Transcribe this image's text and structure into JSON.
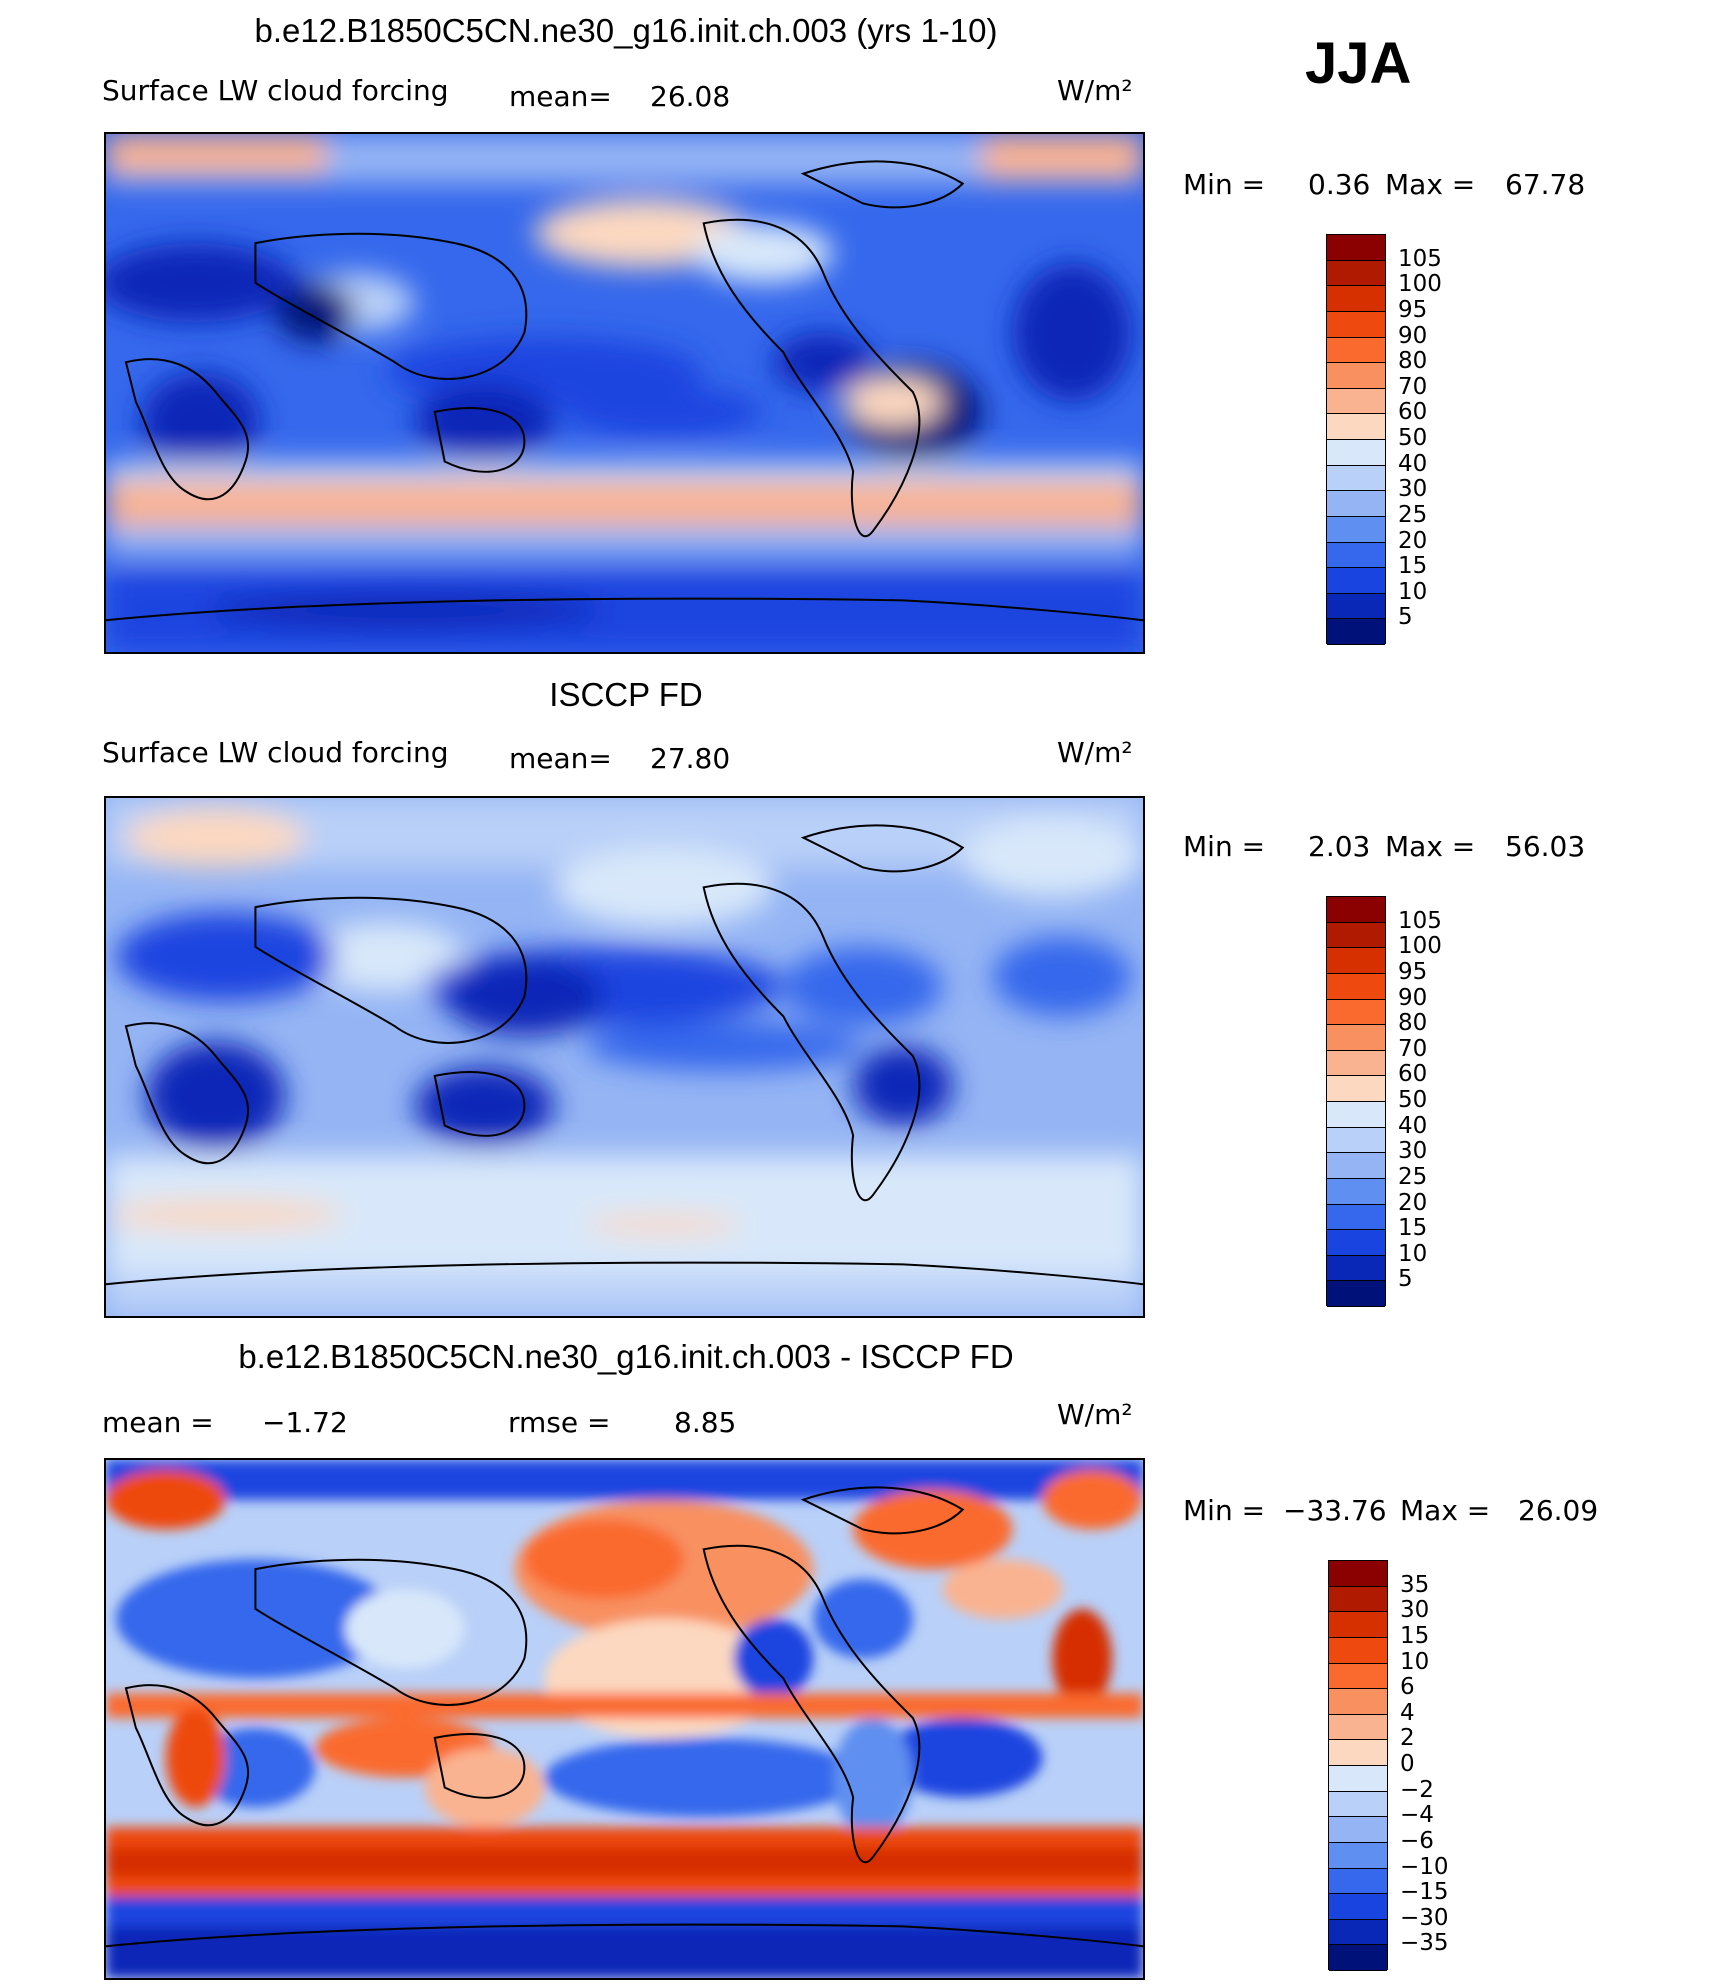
{
  "chart_data": [
    {
      "type": "heatmap",
      "title": "b.e12.B1850C5CN.ne30_g16.init.ch.003 (yrs 1-10)",
      "left_label": "Surface LW cloud forcing",
      "stat_label": "mean=",
      "stat_value": "26.08",
      "units": "W/m²",
      "min_label": "Min =",
      "min_value": "0.36",
      "max_label": "Max =",
      "max_value": "67.78",
      "colorbar": {
        "levels": [
          "105",
          "100",
          "95",
          "90",
          "80",
          "70",
          "60",
          "50",
          "40",
          "30",
          "25",
          "20",
          "15",
          "10",
          "5"
        ],
        "colors": [
          "#8b0000",
          "#b01a00",
          "#d62f00",
          "#ee4a10",
          "#fa6a2e",
          "#f89060",
          "#fab390",
          "#fcd8c0",
          "#d8e8fa",
          "#b9d0f8",
          "#94b4f4",
          "#5f8ff0",
          "#3568ec",
          "#1a44e0",
          "#0a28b8",
          "#00127a"
        ]
      }
    },
    {
      "type": "heatmap",
      "title": "ISCCP FD",
      "left_label": "Surface LW cloud forcing",
      "stat_label": "mean=",
      "stat_value": "27.80",
      "units": "W/m²",
      "min_label": "Min =",
      "min_value": "2.03",
      "max_label": "Max =",
      "max_value": "56.03",
      "colorbar": {
        "levels": [
          "105",
          "100",
          "95",
          "90",
          "80",
          "70",
          "60",
          "50",
          "40",
          "30",
          "25",
          "20",
          "15",
          "10",
          "5"
        ],
        "colors": [
          "#8b0000",
          "#b01a00",
          "#d62f00",
          "#ee4a10",
          "#fa6a2e",
          "#f89060",
          "#fab390",
          "#fcd8c0",
          "#d8e8fa",
          "#b9d0f8",
          "#94b4f4",
          "#5f8ff0",
          "#3568ec",
          "#1a44e0",
          "#0a28b8",
          "#00127a"
        ]
      }
    },
    {
      "type": "heatmap",
      "title": "b.e12.B1850C5CN.ne30_g16.init.ch.003 - ISCCP FD",
      "left_label": "mean =",
      "left_value": "−1.72",
      "stat_label": "rmse =",
      "stat_value": "8.85",
      "units": "W/m²",
      "min_label": "Min =",
      "min_value": "−33.76",
      "max_label": "Max =",
      "max_value": "26.09",
      "colorbar": {
        "levels": [
          "35",
          "30",
          "15",
          "10",
          "6",
          "4",
          "2",
          "0",
          "−2",
          "−4",
          "−6",
          "−10",
          "−15",
          "−30",
          "−35"
        ],
        "colors": [
          "#8b0000",
          "#b01a00",
          "#d62f00",
          "#ee4a10",
          "#fa6a2e",
          "#f89060",
          "#fab390",
          "#fcd8c0",
          "#d8e8fa",
          "#b9d0f8",
          "#94b4f4",
          "#5f8ff0",
          "#3568ec",
          "#1a44e0",
          "#0a28b8",
          "#00127a"
        ]
      }
    }
  ],
  "season": "JJA"
}
